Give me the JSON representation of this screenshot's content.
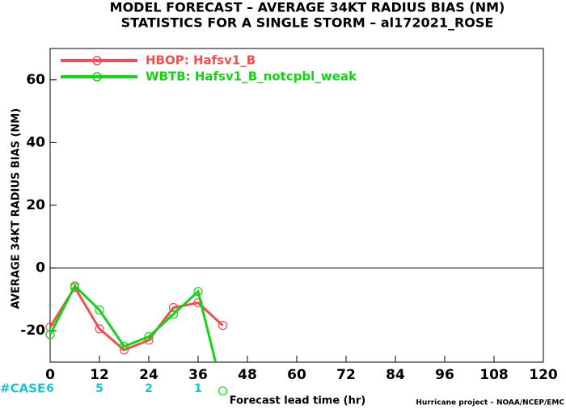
{
  "chart_data": {
    "type": "line",
    "title": "MODEL FORECAST – AVERAGE 34KT RADIUS BIAS (NM)",
    "subtitle": "STATISTICS FOR A SINGLE STORM – al172021_ROSE",
    "y_label": "AVERAGE 34KT RADIUS BIAS (NM)",
    "x_label": "Forecast lead time (hr)",
    "footer": "Hurricane project – NOAA/NCEP/EMC",
    "x": [
      0,
      6,
      12,
      18,
      24,
      30,
      36,
      42
    ],
    "series": [
      {
        "name": "HBOP: Hafsv1_B",
        "color": "#f0504f",
        "values": [
          -18.8,
          -6.2,
          -19.4,
          -26.1,
          -23.0,
          -12.6,
          -11.1,
          -18.3
        ]
      },
      {
        "name": "WBTB: Hafsv1_B_notcpbl_weak",
        "color": "#14d214",
        "values": [
          -21.2,
          -5.7,
          -13.4,
          -25.0,
          -21.9,
          -14.7,
          -7.5,
          -39.2
        ]
      }
    ],
    "xlim": [
      0,
      120
    ],
    "xticks": [
      0,
      12,
      24,
      36,
      48,
      60,
      72,
      84,
      96,
      108,
      120
    ],
    "ylim": [
      -30,
      70
    ],
    "yticks": [
      -20,
      0,
      20,
      40,
      60
    ],
    "case_counts": {
      "label": "#CASE",
      "color": "#20c0d0",
      "x": [
        0,
        12,
        24,
        36
      ],
      "values": [
        6,
        5,
        2,
        1
      ]
    }
  }
}
